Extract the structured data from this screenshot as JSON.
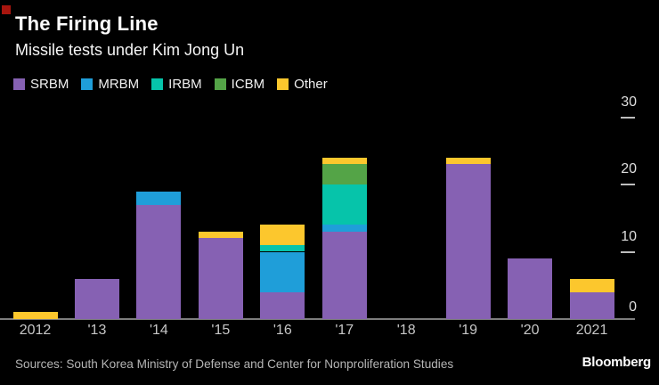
{
  "header": {
    "title": "The Firing Line",
    "subtitle": "Missile tests under Kim Jong Un"
  },
  "legend": [
    {
      "label": "SRBM",
      "color": "#8661b3"
    },
    {
      "label": "MRBM",
      "color": "#1f9ed9"
    },
    {
      "label": "IRBM",
      "color": "#06c4aa"
    },
    {
      "label": "ICBM",
      "color": "#54a447"
    },
    {
      "label": "Other",
      "color": "#fcc72d"
    }
  ],
  "chart_data": {
    "type": "bar",
    "stacked": true,
    "categories": [
      "2012",
      "'13",
      "'14",
      "'15",
      "'16",
      "'17",
      "'18",
      "'19",
      "'20",
      "2021"
    ],
    "series": [
      {
        "name": "SRBM",
        "color": "#8661b3",
        "values": [
          0,
          6,
          17,
          12,
          4,
          13,
          0,
          23,
          9,
          4
        ]
      },
      {
        "name": "MRBM",
        "color": "#1f9ed9",
        "values": [
          0,
          0,
          2,
          0,
          6,
          1,
          0,
          0,
          0,
          0
        ]
      },
      {
        "name": "IRBM",
        "color": "#06c4aa",
        "values": [
          0,
          0,
          0,
          0,
          1,
          6,
          0,
          0,
          0,
          0
        ]
      },
      {
        "name": "ICBM",
        "color": "#54a447",
        "values": [
          0,
          0,
          0,
          0,
          0,
          3,
          0,
          0,
          0,
          0
        ]
      },
      {
        "name": "Other",
        "color": "#fcc72d",
        "values": [
          1,
          0,
          0,
          1,
          3,
          1,
          0,
          1,
          0,
          2
        ]
      }
    ],
    "totals": [
      1,
      6,
      19,
      13,
      14,
      24,
      0,
      24,
      9,
      6
    ],
    "title": "The Firing Line",
    "subtitle": "Missile tests under Kim Jong Un",
    "xlabel": "",
    "ylabel": "",
    "ylim": [
      0,
      30
    ],
    "yticks": [
      0,
      10,
      20,
      30
    ],
    "ytick_side": "right",
    "grid": false,
    "legend_position": "top",
    "background": "#000000"
  },
  "footer": {
    "sources": "Sources: South Korea Ministry of Defense and Center for Nonproliferation Studies",
    "brand": "Bloomberg"
  },
  "misc": {
    "red_square_color": "#a8150e",
    "axis_line_color": "#7d7d7d"
  }
}
